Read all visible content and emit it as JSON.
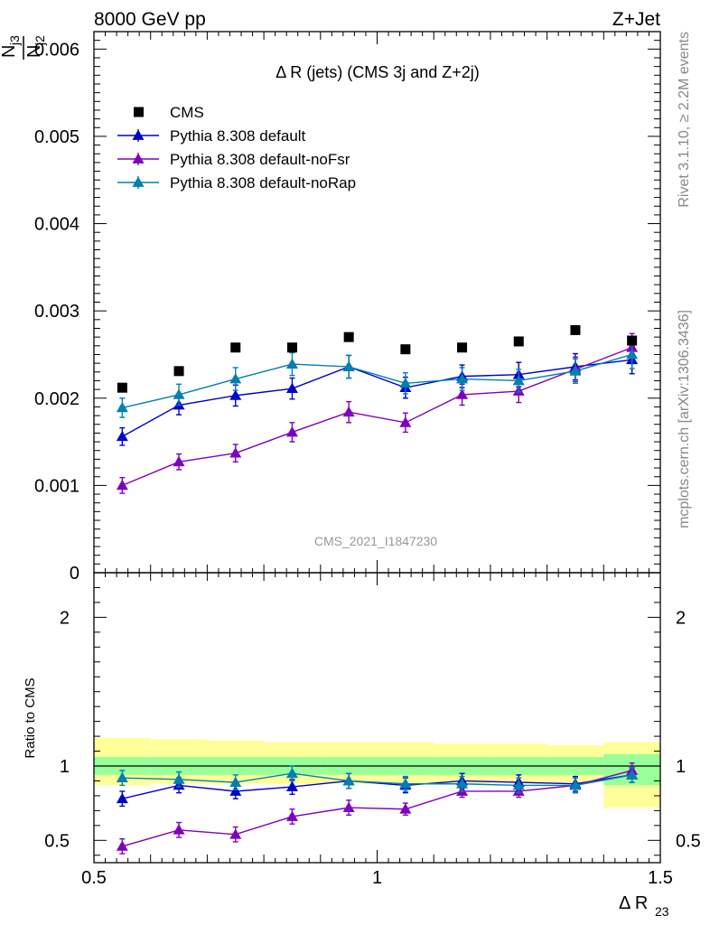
{
  "header": {
    "left": "8000 GeV pp",
    "right": "Z+Jet"
  },
  "side_labels": {
    "rivet": "Rivet 3.1.10, ≥ 2.2M events",
    "mcplots": "mcplots.cern.ch [arXiv:1306.3436]"
  },
  "chart_data": {
    "type": "line",
    "title": "Δ R (jets) (CMS 3j and Z+2j)",
    "watermark": "CMS_2021_I1847230",
    "ylabel_main_top": "N",
    "ylabel_main_top_sub": "j3",
    "ylabel_main_bottom": "N",
    "ylabel_main_bottom_sub": "j2",
    "xlabel_main": "Δ R",
    "xlabel_sub": "23",
    "ylabel_ratio": "Ratio to CMS",
    "legend_position": "top-left",
    "xlim": [
      0.5,
      1.5
    ],
    "ylim_main": [
      0,
      0.0062
    ],
    "ylim_ratio": [
      0.35,
      2.3
    ],
    "x_ticks": [
      "0.5",
      "1",
      "1.5"
    ],
    "y_ticks_main": [
      "0",
      "0.001",
      "0.002",
      "0.003",
      "0.004",
      "0.005",
      "0.006"
    ],
    "y_ticks_ratio": [
      "0.5",
      "1",
      "2"
    ],
    "x": [
      0.55,
      0.65,
      0.75,
      0.85,
      0.95,
      1.05,
      1.15,
      1.25,
      1.35,
      1.45
    ],
    "cms": {
      "name": "CMS",
      "color": "#000000",
      "values": [
        0.00212,
        0.00231,
        0.00258,
        0.00258,
        0.0027,
        0.00256,
        0.00258,
        0.00265,
        0.00278,
        0.00266
      ]
    },
    "series": [
      {
        "name": "Pythia 8.308 default",
        "color": "#0000cc",
        "values": [
          0.00156,
          0.00192,
          0.00203,
          0.00211,
          0.00236,
          0.00212,
          0.00225,
          0.00227,
          0.00236,
          0.00244
        ],
        "errors": [
          0.0001,
          0.00011,
          0.00012,
          0.00012,
          0.00013,
          0.00012,
          0.00013,
          0.00014,
          0.00015,
          0.00016
        ],
        "ratio": [
          0.78,
          0.87,
          0.83,
          0.86,
          0.9,
          0.87,
          0.9,
          0.89,
          0.88,
          0.94
        ],
        "ratio_err": [
          0.05,
          0.05,
          0.05,
          0.05,
          0.05,
          0.05,
          0.05,
          0.05,
          0.05,
          0.05
        ]
      },
      {
        "name": "Pythia 8.308 default-noFsr",
        "color": "#7f00bf",
        "values": [
          0.001,
          0.00127,
          0.00137,
          0.00161,
          0.00184,
          0.00172,
          0.00204,
          0.00208,
          0.00233,
          0.00258
        ],
        "errors": [
          9e-05,
          9e-05,
          0.0001,
          0.00011,
          0.00012,
          0.00011,
          0.00012,
          0.00013,
          0.00014,
          0.00016
        ],
        "ratio": [
          0.46,
          0.57,
          0.54,
          0.66,
          0.72,
          0.71,
          0.83,
          0.83,
          0.87,
          0.97
        ],
        "ratio_err": [
          0.05,
          0.05,
          0.05,
          0.05,
          0.05,
          0.04,
          0.04,
          0.04,
          0.05,
          0.05
        ]
      },
      {
        "name": "Pythia 8.308 default-noRap",
        "color": "#0080b0",
        "values": [
          0.00189,
          0.00204,
          0.00222,
          0.00239,
          0.00236,
          0.00217,
          0.00222,
          0.0022,
          0.00231,
          0.0025
        ],
        "errors": [
          0.00011,
          0.00012,
          0.00013,
          0.00013,
          0.00013,
          0.00012,
          0.00013,
          0.00013,
          0.00014,
          0.00016
        ],
        "ratio": [
          0.92,
          0.91,
          0.89,
          0.95,
          0.9,
          0.88,
          0.88,
          0.87,
          0.87,
          0.94
        ],
        "ratio_err": [
          0.05,
          0.05,
          0.05,
          0.05,
          0.05,
          0.05,
          0.05,
          0.05,
          0.05,
          0.05
        ]
      }
    ],
    "bands": {
      "edges": [
        0.5,
        0.6,
        0.7,
        0.8,
        0.9,
        1.0,
        1.1,
        1.2,
        1.3,
        1.4,
        1.5
      ],
      "inner_color": "#99ff99",
      "outer_color": "#ffff99",
      "inner_lo": [
        0.94,
        0.94,
        0.94,
        0.94,
        0.94,
        0.94,
        0.94,
        0.94,
        0.94,
        0.87
      ],
      "inner_hi": [
        1.06,
        1.06,
        1.06,
        1.06,
        1.06,
        1.06,
        1.06,
        1.06,
        1.06,
        1.08
      ],
      "outer_lo": [
        0.87,
        0.88,
        0.88,
        0.88,
        0.88,
        0.88,
        0.88,
        0.89,
        0.89,
        0.72
      ],
      "outer_hi": [
        1.19,
        1.18,
        1.17,
        1.16,
        1.16,
        1.16,
        1.15,
        1.15,
        1.14,
        1.16
      ]
    }
  }
}
